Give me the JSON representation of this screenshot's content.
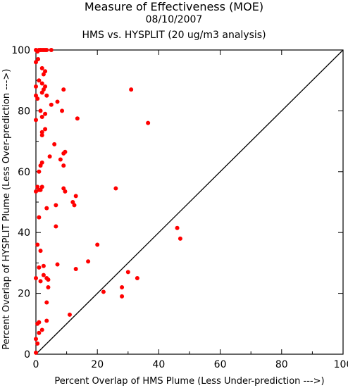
{
  "chart_data": {
    "type": "scatter",
    "title": "Measure of Effectiveness (MOE)",
    "date": "08/10/2007",
    "subtitle": "HMS vs. HYSPLIT  (20 ug/m3 analysis)",
    "xlabel": "Percent Overlap of HMS Plume (Less Under-prediction --->)",
    "ylabel": "Percent Overlap of HYSPLIT Plume (Less Over-prediction --->)",
    "xlim": [
      0,
      100
    ],
    "ylim": [
      0,
      100
    ],
    "xticks": [
      "0",
      "20",
      "40",
      "60",
      "80",
      "100"
    ],
    "yticks": [
      "0",
      "20",
      "40",
      "60",
      "80",
      "100"
    ],
    "grid": false,
    "reference_line": "y = x",
    "point_color": "#ff0000",
    "points": [
      [
        0,
        100
      ],
      [
        1,
        100
      ],
      [
        1.5,
        100
      ],
      [
        2,
        100
      ],
      [
        2.5,
        100
      ],
      [
        3,
        100
      ],
      [
        3.5,
        100
      ],
      [
        5,
        100
      ],
      [
        0.5,
        99.5
      ],
      [
        0,
        96
      ],
      [
        0.7,
        97
      ],
      [
        2,
        94
      ],
      [
        3,
        93
      ],
      [
        2.5,
        92
      ],
      [
        1,
        90
      ],
      [
        2,
        89
      ],
      [
        3,
        88
      ],
      [
        2.5,
        87
      ],
      [
        2,
        86
      ],
      [
        3.5,
        85
      ],
      [
        9,
        87
      ],
      [
        31,
        87
      ],
      [
        0,
        88
      ],
      [
        0,
        85
      ],
      [
        0.5,
        84
      ],
      [
        5,
        82
      ],
      [
        7,
        83
      ],
      [
        1.5,
        80
      ],
      [
        3,
        79
      ],
      [
        2,
        78
      ],
      [
        8.5,
        80
      ],
      [
        13.5,
        77.5
      ],
      [
        36.5,
        76
      ],
      [
        0,
        77
      ],
      [
        3,
        74
      ],
      [
        2,
        73
      ],
      [
        2,
        72
      ],
      [
        6,
        69
      ],
      [
        4.5,
        65
      ],
      [
        9,
        66
      ],
      [
        9.5,
        66.5
      ],
      [
        8,
        64
      ],
      [
        2,
        63
      ],
      [
        1.5,
        62
      ],
      [
        1,
        60
      ],
      [
        9,
        62
      ],
      [
        0.5,
        55
      ],
      [
        2,
        55
      ],
      [
        1,
        54
      ],
      [
        0,
        53.5
      ],
      [
        1.5,
        54
      ],
      [
        9,
        54.5
      ],
      [
        9.5,
        53.5
      ],
      [
        26,
        54.5
      ],
      [
        13,
        52
      ],
      [
        12,
        50
      ],
      [
        12.5,
        49
      ],
      [
        6.5,
        49
      ],
      [
        3.5,
        48
      ],
      [
        1,
        45
      ],
      [
        6.5,
        42
      ],
      [
        46,
        41.5
      ],
      [
        47,
        38
      ],
      [
        20,
        36
      ],
      [
        0.5,
        36
      ],
      [
        1.5,
        34
      ],
      [
        17,
        30.5
      ],
      [
        7,
        29.5
      ],
      [
        2.5,
        29
      ],
      [
        1,
        28.5
      ],
      [
        13,
        28
      ],
      [
        30,
        27
      ],
      [
        2.5,
        26
      ],
      [
        0,
        25
      ],
      [
        1.5,
        24
      ],
      [
        3.5,
        25
      ],
      [
        4,
        24.5
      ],
      [
        33,
        25
      ],
      [
        4,
        22
      ],
      [
        28,
        22
      ],
      [
        22,
        20.5
      ],
      [
        28,
        19
      ],
      [
        3.5,
        17
      ],
      [
        11,
        13
      ],
      [
        3.5,
        11
      ],
      [
        0.5,
        10
      ],
      [
        1,
        10.5
      ],
      [
        2,
        8
      ],
      [
        1,
        7
      ],
      [
        0,
        5
      ],
      [
        0.5,
        3.5
      ],
      [
        0,
        0.5
      ]
    ]
  }
}
